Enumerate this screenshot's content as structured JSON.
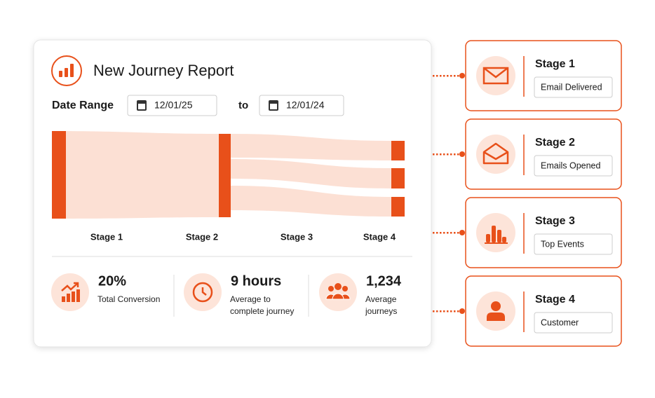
{
  "header": {
    "title": "New Journey Report"
  },
  "date_range": {
    "label": "Date Range",
    "start": "12/01/25",
    "separator": "to",
    "end": "12/01/24"
  },
  "flow": {
    "stages": [
      "Stage 1",
      "Stage 2",
      "Stage 3",
      "Stage 4"
    ]
  },
  "stats": [
    {
      "value": "20%",
      "label": "Total Conversion"
    },
    {
      "value": "9 hours",
      "label": "Average to complete journey"
    },
    {
      "value": "1,234",
      "label": "Average journeys"
    }
  ],
  "stages": [
    {
      "title": "Stage 1",
      "label": "Email Delivered"
    },
    {
      "title": "Stage 2",
      "label": "Emails Opened"
    },
    {
      "title": "Stage 3",
      "label": "Top Events"
    },
    {
      "title": "Stage 4",
      "label": "Customer"
    }
  ]
}
